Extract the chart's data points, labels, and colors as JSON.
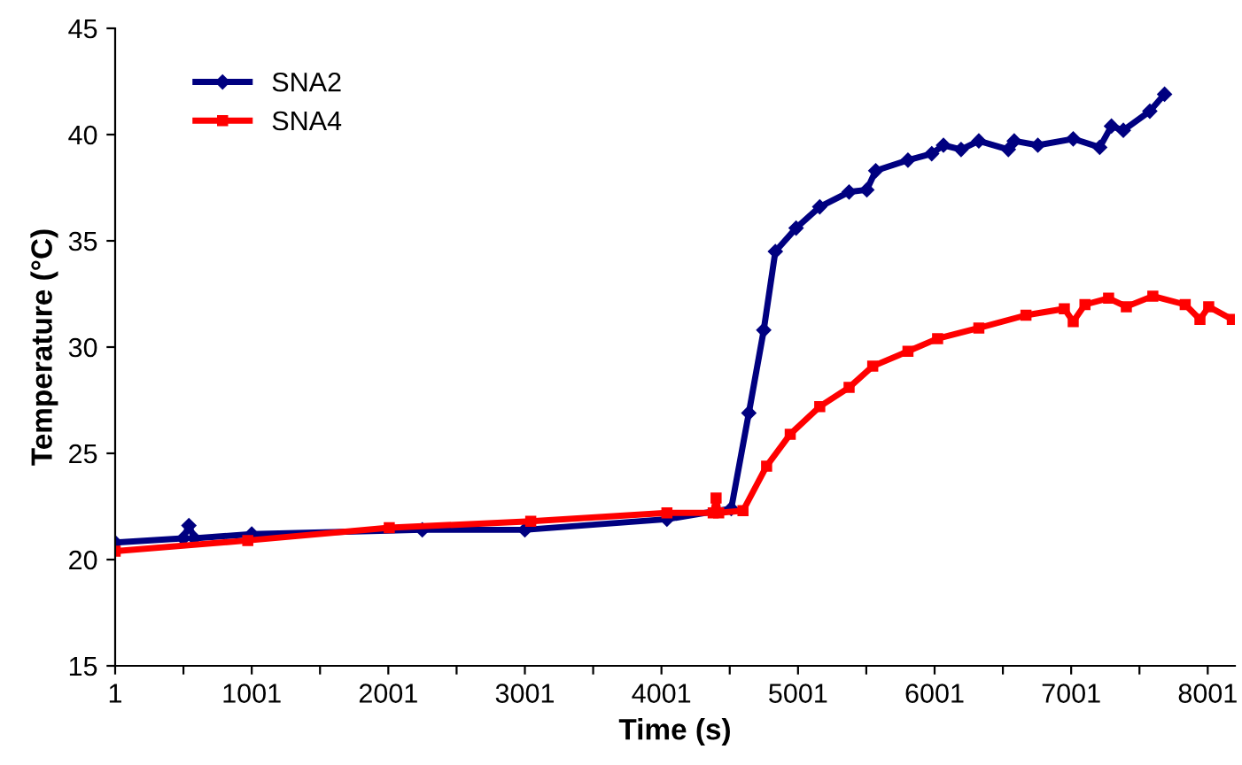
{
  "chart_data": {
    "type": "line",
    "xlabel": "Time (s)",
    "ylabel": "Temperature (°C)",
    "xlim": [
      1,
      8200
    ],
    "ylim": [
      15,
      45
    ],
    "xticks": [
      1,
      {
        "value": 501,
        "label": null
      },
      1001,
      {
        "value": 1501,
        "label": null
      },
      2001,
      {
        "value": 2501,
        "label": null
      },
      3001,
      {
        "value": 3501,
        "label": null
      },
      4001,
      {
        "value": 4501,
        "label": null
      },
      5001,
      {
        "value": 5501,
        "label": null
      },
      6001,
      {
        "value": 6501,
        "label": null
      },
      7001,
      {
        "value": 7501,
        "label": null
      },
      8001
    ],
    "yticks": [
      15,
      20,
      25,
      30,
      35,
      40,
      45
    ],
    "grid": false,
    "legend": "top left",
    "line_style": "solid",
    "series": [
      {
        "name": "SNA2",
        "color": "#000080",
        "marker": "diamond",
        "x": [
          1,
          500,
          541,
          580,
          1001,
          2250,
          3001,
          4041,
          4512,
          4641,
          4750,
          4835,
          4987,
          5160,
          5375,
          5505,
          5570,
          5806,
          5980,
          6066,
          6195,
          6325,
          6541,
          6584,
          6757,
          7016,
          7210,
          7296,
          7383,
          7577,
          7685
        ],
        "values": [
          20.8,
          21.0,
          21.6,
          21.0,
          21.2,
          21.4,
          21.4,
          21.9,
          22.4,
          26.9,
          30.8,
          34.5,
          35.6,
          36.6,
          37.3,
          37.4,
          38.3,
          38.8,
          39.1,
          39.5,
          39.3,
          39.7,
          39.3,
          39.7,
          39.5,
          39.8,
          39.4,
          40.4,
          40.2,
          41.1,
          41.9
        ]
      },
      {
        "name": "SNA4",
        "color": "#ff0000",
        "marker": "square",
        "x": [
          1,
          972,
          2008,
          3044,
          4041,
          4380,
          4401,
          4420,
          4598,
          4771,
          4944,
          5160,
          5375,
          5548,
          5806,
          6023,
          6325,
          6670,
          6951,
          7016,
          7102,
          7275,
          7405,
          7599,
          7836,
          7944,
          8008,
          8181
        ],
        "values": [
          20.4,
          20.9,
          21.5,
          21.8,
          22.2,
          22.2,
          22.9,
          22.2,
          22.3,
          24.4,
          25.9,
          27.2,
          28.1,
          29.1,
          29.8,
          30.4,
          30.9,
          31.5,
          31.8,
          31.2,
          32.0,
          32.3,
          31.9,
          32.4,
          32.0,
          31.3,
          31.9,
          31.3
        ]
      }
    ]
  }
}
